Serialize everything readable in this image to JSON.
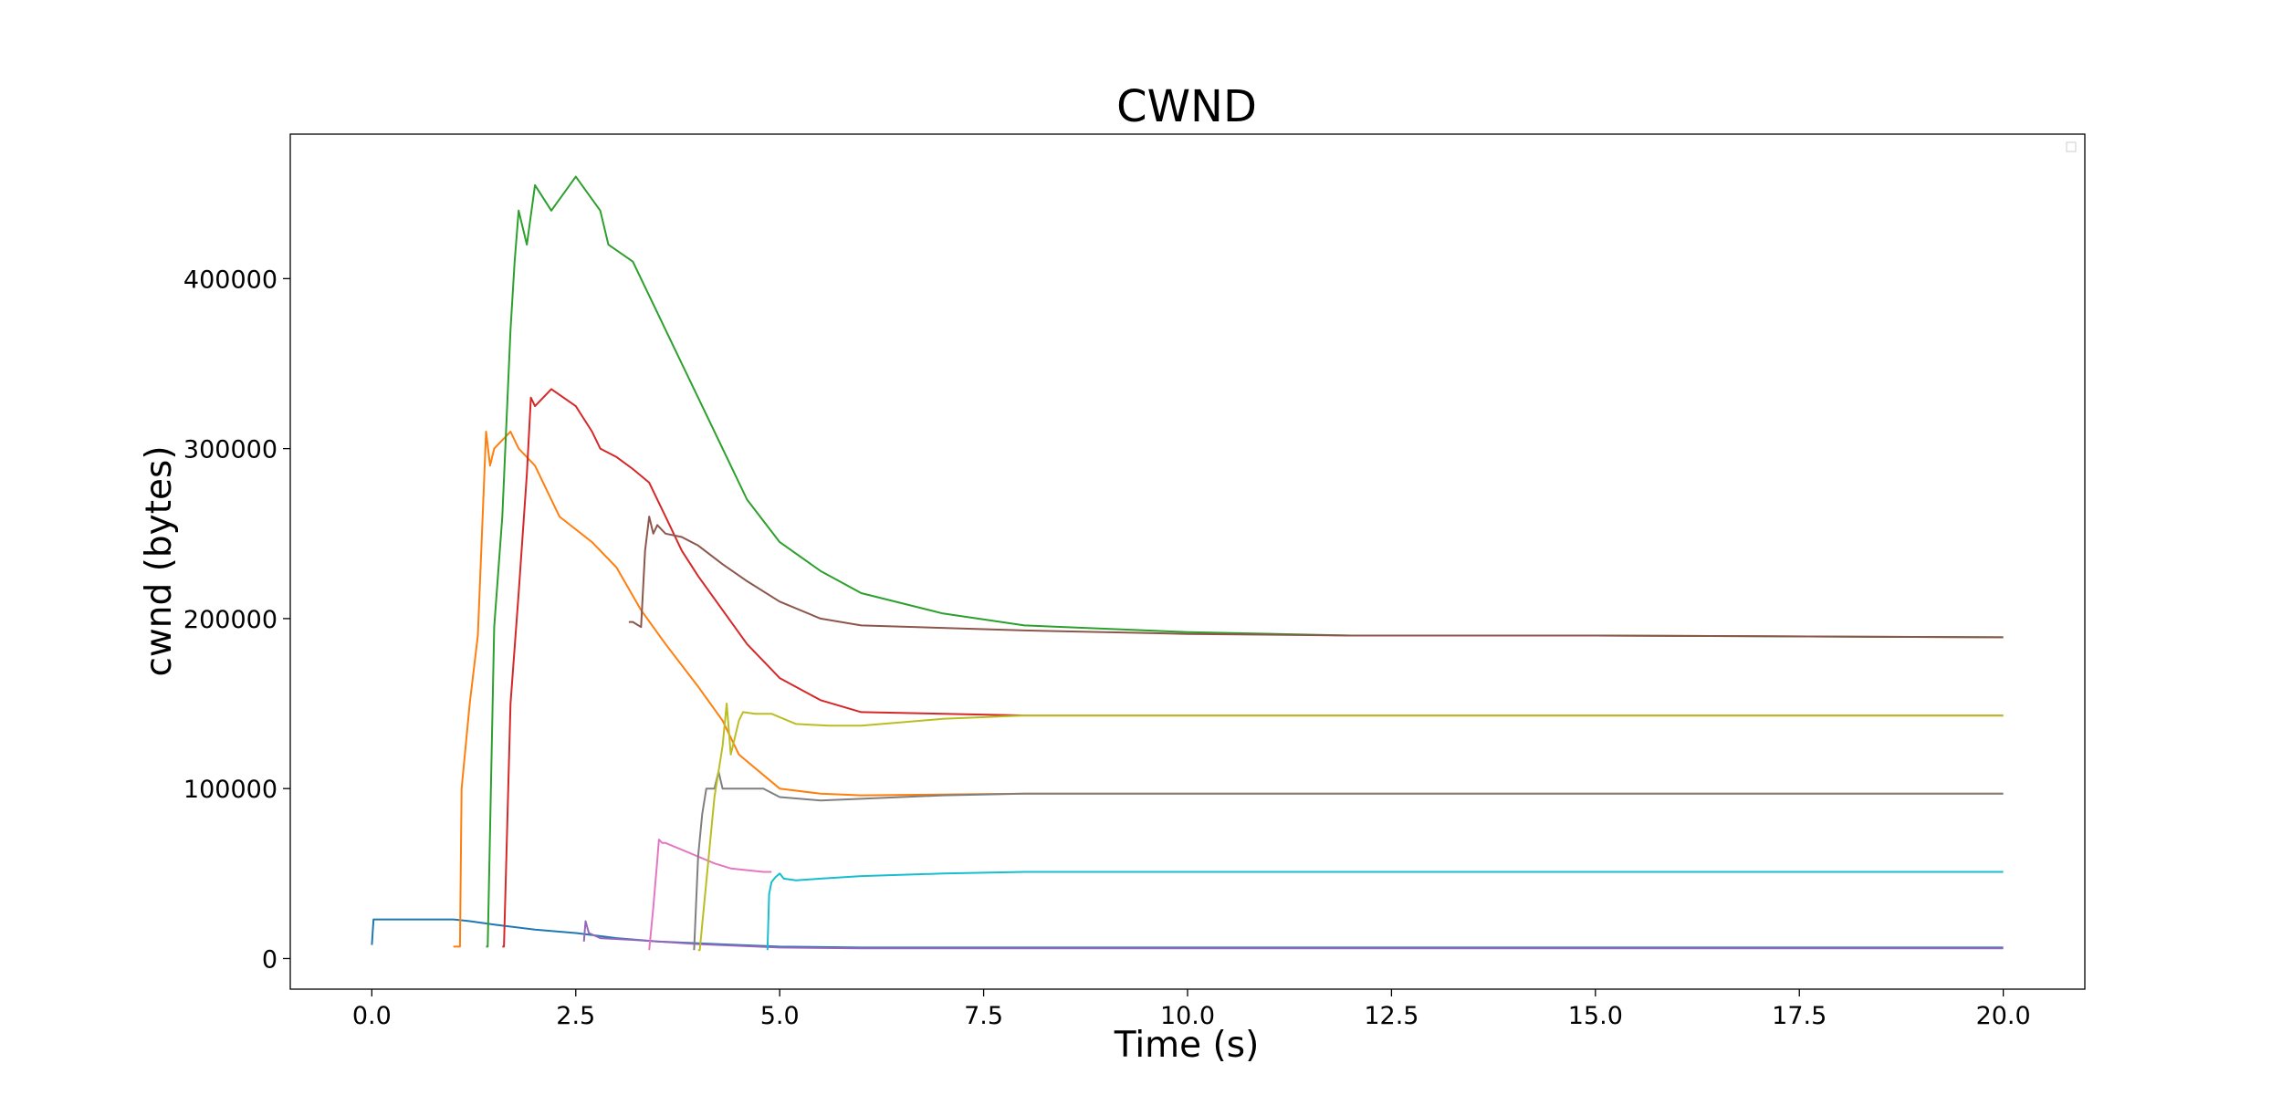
{
  "chart_data": {
    "type": "line",
    "title": "CWND",
    "xlabel": "Time (s)",
    "ylabel": "cwnd (bytes)",
    "xlim": [
      -1.0,
      21.0
    ],
    "ylim": [
      -18000,
      485000
    ],
    "xticks": [
      "0.0",
      "2.5",
      "5.0",
      "7.5",
      "10.0",
      "12.5",
      "15.0",
      "17.5",
      "20.0"
    ],
    "yticks": [
      "0",
      "100000",
      "200000",
      "300000",
      "400000"
    ],
    "grid": false,
    "legend": "top-right (empty)",
    "series": [
      {
        "color": "#1f77b4",
        "x": [
          0.0,
          0.02,
          0.5,
          1.0,
          1.2,
          1.5,
          2.0,
          2.5,
          3.0,
          3.5,
          4.0,
          4.5,
          5.0,
          6.0,
          8.0,
          12.0,
          16.0,
          20.0
        ],
        "y": [
          8000,
          23000,
          23000,
          23000,
          22000,
          20000,
          17000,
          15000,
          12000,
          10000,
          9000,
          8000,
          7000,
          6500,
          6500,
          6500,
          6500,
          6500
        ]
      },
      {
        "color": "#ff7f0e",
        "x": [
          1.0,
          1.08,
          1.1,
          1.2,
          1.3,
          1.35,
          1.4,
          1.45,
          1.5,
          1.6,
          1.7,
          1.8,
          2.0,
          2.3,
          2.7,
          3.0,
          3.3,
          3.6,
          4.0,
          4.3,
          4.5,
          4.8,
          5.0,
          5.5,
          6.0,
          8.0,
          12.0,
          16.0,
          20.0
        ],
        "y": [
          7000,
          7000,
          100000,
          150000,
          190000,
          250000,
          310000,
          290000,
          300000,
          305000,
          310000,
          300000,
          290000,
          260000,
          245000,
          230000,
          205000,
          185000,
          160000,
          140000,
          120000,
          108000,
          100000,
          97000,
          96000,
          97000,
          97000,
          97000,
          97000
        ]
      },
      {
        "color": "#2ca02c",
        "x": [
          1.4,
          1.42,
          1.5,
          1.6,
          1.7,
          1.75,
          1.8,
          1.9,
          2.0,
          2.2,
          2.5,
          2.8,
          2.9,
          3.2,
          3.5,
          3.8,
          4.1,
          4.4,
          4.6,
          5.0,
          5.5,
          6.0,
          7.0,
          8.0,
          10.0,
          12.0,
          15.0,
          20.0
        ],
        "y": [
          7000,
          7000,
          195000,
          260000,
          370000,
          410000,
          440000,
          420000,
          455000,
          440000,
          460000,
          440000,
          420000,
          410000,
          380000,
          350000,
          320000,
          290000,
          270000,
          245000,
          228000,
          215000,
          203000,
          196000,
          192000,
          190000,
          190000,
          189000
        ]
      },
      {
        "color": "#d62728",
        "x": [
          1.6,
          1.62,
          1.7,
          1.8,
          1.9,
          1.95,
          2.0,
          2.2,
          2.5,
          2.7,
          2.8,
          3.0,
          3.2,
          3.4,
          3.6,
          3.8,
          4.0,
          4.3,
          4.6,
          5.0,
          5.5,
          6.0,
          8.0,
          12.0,
          16.0,
          20.0
        ],
        "y": [
          7000,
          7000,
          150000,
          215000,
          285000,
          330000,
          325000,
          335000,
          325000,
          310000,
          300000,
          295000,
          288000,
          280000,
          260000,
          240000,
          225000,
          205000,
          185000,
          165000,
          152000,
          145000,
          143000,
          143000,
          143000,
          143000
        ]
      },
      {
        "color": "#9467bd",
        "x": [
          2.6,
          2.62,
          2.66,
          2.8,
          3.2,
          3.5,
          4.0,
          5.0,
          6.0,
          8.0,
          12.0,
          16.0,
          20.0
        ],
        "y": [
          10000,
          22000,
          15000,
          12000,
          11000,
          10000,
          8500,
          6500,
          6000,
          6000,
          6000,
          6000,
          6000
        ]
      },
      {
        "color": "#8c564b",
        "x": [
          3.15,
          3.2,
          3.3,
          3.35,
          3.4,
          3.45,
          3.5,
          3.6,
          3.8,
          4.0,
          4.3,
          4.6,
          5.0,
          5.5,
          6.0,
          8.0,
          10.0,
          12.0,
          15.0,
          20.0
        ],
        "y": [
          198000,
          198000,
          195000,
          240000,
          260000,
          250000,
          255000,
          250000,
          248000,
          243000,
          232000,
          222000,
          210000,
          200000,
          196000,
          193000,
          191000,
          190000,
          190000,
          189000
        ]
      },
      {
        "color": "#e377c2",
        "x": [
          3.4,
          3.45,
          3.5,
          3.52,
          3.56,
          3.6,
          3.8,
          4.0,
          4.2,
          4.4,
          4.6,
          4.8,
          4.9
        ],
        "y": [
          5000,
          30000,
          58000,
          70000,
          68000,
          68000,
          64000,
          60000,
          56000,
          53000,
          52000,
          51000,
          51000
        ]
      },
      {
        "color": "#7f7f7f",
        "x": [
          3.95,
          4.0,
          4.05,
          4.1,
          4.15,
          4.2,
          4.25,
          4.3,
          4.5,
          4.8,
          5.0,
          5.5,
          6.0,
          7.0,
          8.0,
          12.0,
          16.0,
          20.0
        ],
        "y": [
          5000,
          60000,
          85000,
          100000,
          100000,
          100000,
          110000,
          100000,
          100000,
          100000,
          95000,
          93000,
          94000,
          96000,
          97000,
          97000,
          97000,
          97000
        ]
      },
      {
        "color": "#bcbd22",
        "x": [
          4.0,
          4.02,
          4.2,
          4.3,
          4.35,
          4.4,
          4.5,
          4.55,
          4.7,
          4.9,
          5.2,
          5.6,
          6.0,
          7.0,
          8.0,
          12.0,
          16.0,
          20.0
        ],
        "y": [
          5000,
          5000,
          95000,
          125000,
          150000,
          120000,
          140000,
          145000,
          144000,
          144000,
          138000,
          137000,
          137000,
          141000,
          143000,
          143000,
          143000,
          143000
        ]
      },
      {
        "color": "#17becf",
        "x": [
          4.85,
          4.87,
          4.9,
          4.95,
          5.0,
          5.05,
          5.2,
          5.5,
          6.0,
          7.0,
          8.0,
          12.0,
          16.0,
          20.0
        ],
        "y": [
          5000,
          38000,
          45000,
          48000,
          50000,
          47000,
          46000,
          47000,
          48500,
          50000,
          51000,
          51000,
          51000,
          51000
        ]
      }
    ]
  }
}
